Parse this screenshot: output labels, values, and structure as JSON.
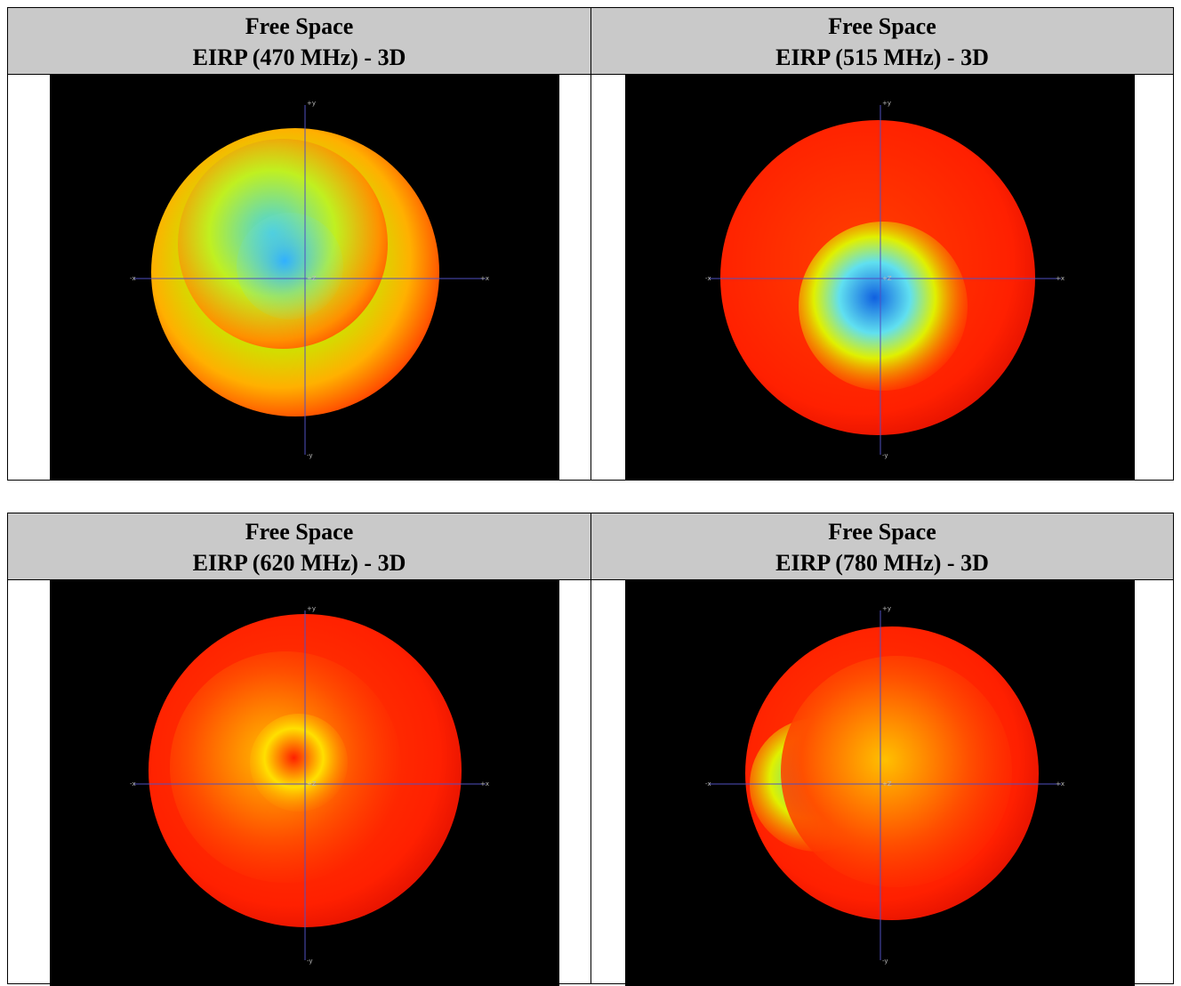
{
  "tables": [
    {
      "cells": [
        {
          "header": [
            "Free Space",
            "EIRP (470 MHz) - 3D"
          ],
          "axis_labels": [
            "+y",
            "-x",
            "+x",
            "+Z",
            "-y"
          ]
        },
        {
          "header": [
            "Free Space",
            "EIRP (515 MHz) - 3D"
          ],
          "axis_labels": [
            "+y",
            "-x",
            "+x",
            "+Z",
            "-y"
          ]
        }
      ]
    },
    {
      "cells": [
        {
          "header": [
            "Free Space",
            "EIRP (620 MHz) - 3D"
          ],
          "axis_labels": [
            "+y",
            "-x",
            "+x",
            "+Z",
            "-y"
          ]
        },
        {
          "header": [
            "Free Space",
            "EIRP (780 MHz) - 3D"
          ],
          "axis_labels": [
            "+y",
            "-x",
            "+x",
            "+Z",
            "-y"
          ]
        }
      ]
    }
  ]
}
